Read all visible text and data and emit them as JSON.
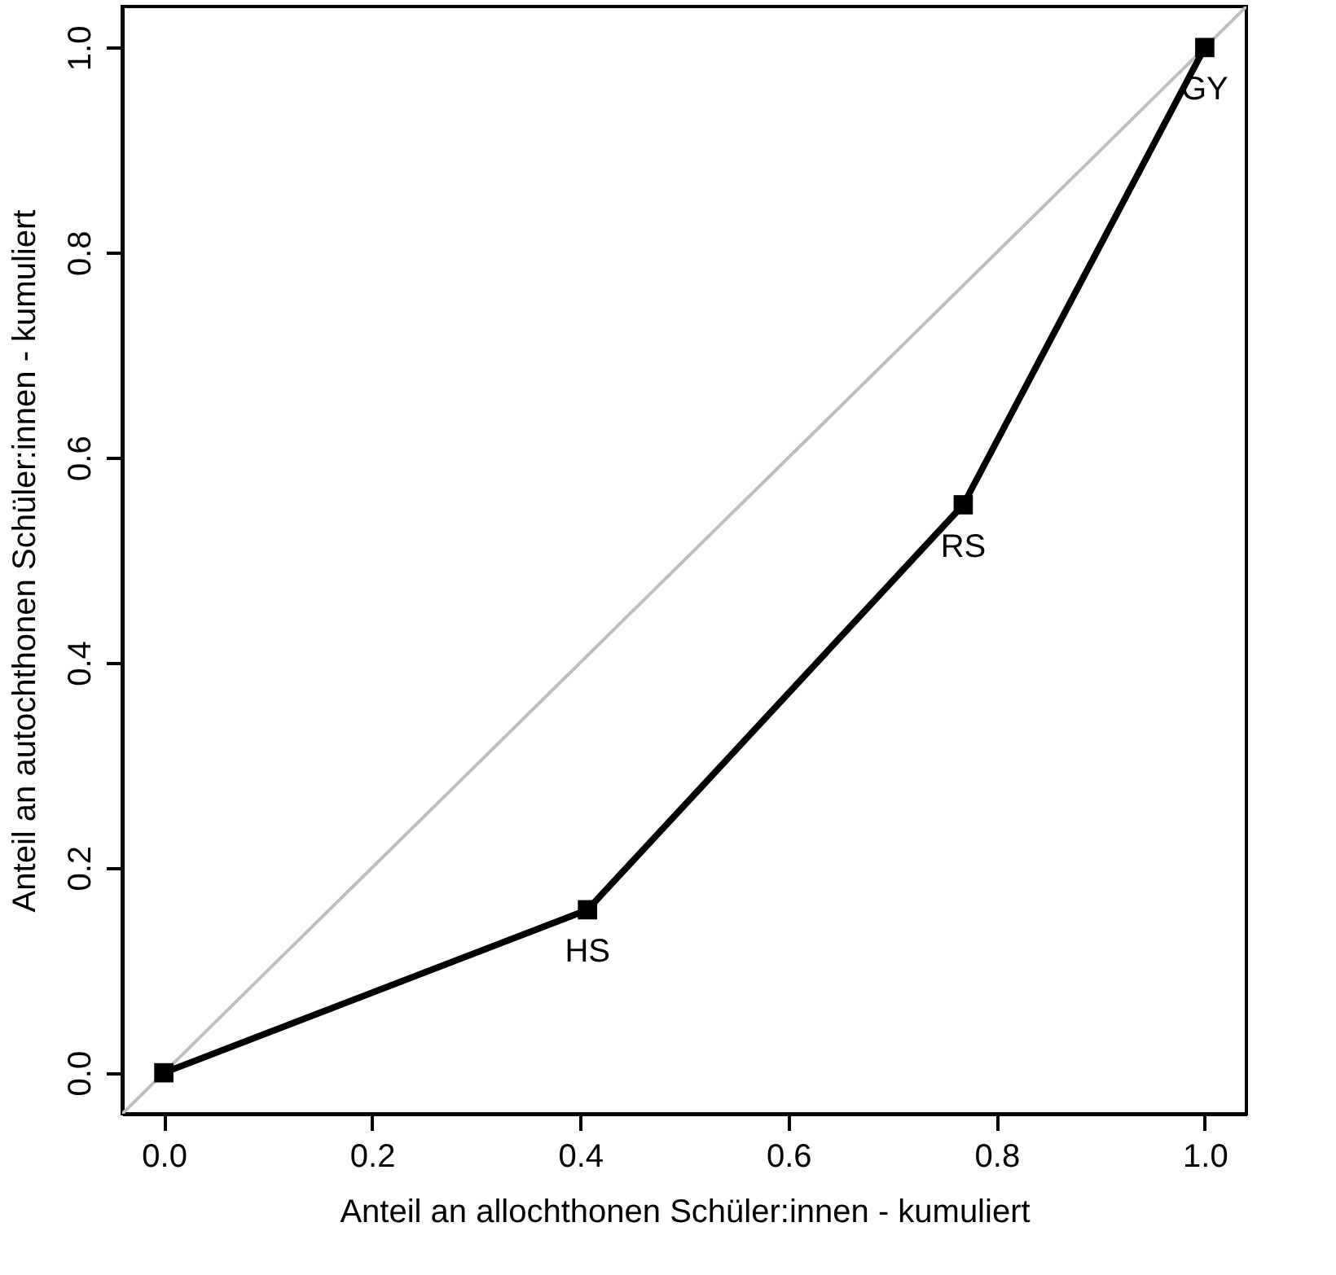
{
  "chart_data": {
    "type": "line",
    "xlabel": "Anteil an allochthonen Schüler:innen - kumuliert",
    "ylabel": "Anteil an autochthonen Schüler:innen - kumuliert",
    "xlim": [
      -0.04,
      1.04
    ],
    "ylim": [
      -0.04,
      1.04
    ],
    "xticks": [
      {
        "value": 0,
        "label": "0.0"
      },
      {
        "value": 0.2,
        "label": "0.2"
      },
      {
        "value": 0.4,
        "label": "0.4"
      },
      {
        "value": 0.6,
        "label": "0.6"
      },
      {
        "value": 0.8,
        "label": "0.8"
      },
      {
        "value": 1,
        "label": "1.0"
      }
    ],
    "yticks": [
      {
        "value": 0,
        "label": "0.0"
      },
      {
        "value": 0.2,
        "label": "0.2"
      },
      {
        "value": 0.4,
        "label": "0.4"
      },
      {
        "value": 0.6,
        "label": "0.6"
      },
      {
        "value": 0.8,
        "label": "0.8"
      },
      {
        "value": 1,
        "label": "1.0"
      }
    ],
    "x": [
      0,
      0.407,
      0.768,
      1
    ],
    "series": [
      {
        "color": "#bebebe",
        "x": [
          -0.04,
          1.04
        ],
        "values": [
          -0.04,
          1.04
        ],
        "marker": "none"
      },
      {
        "color": "#000000",
        "values": [
          0,
          0.159,
          0.554,
          1
        ],
        "marker": "square"
      }
    ],
    "line_style": "solid",
    "annotations": [
      {
        "text": "HS",
        "x": 0.407,
        "y": 0.159
      },
      {
        "text": "RS",
        "x": 0.768,
        "y": 0.554
      },
      {
        "text": "GY",
        "x": 1,
        "y": 1
      }
    ]
  }
}
